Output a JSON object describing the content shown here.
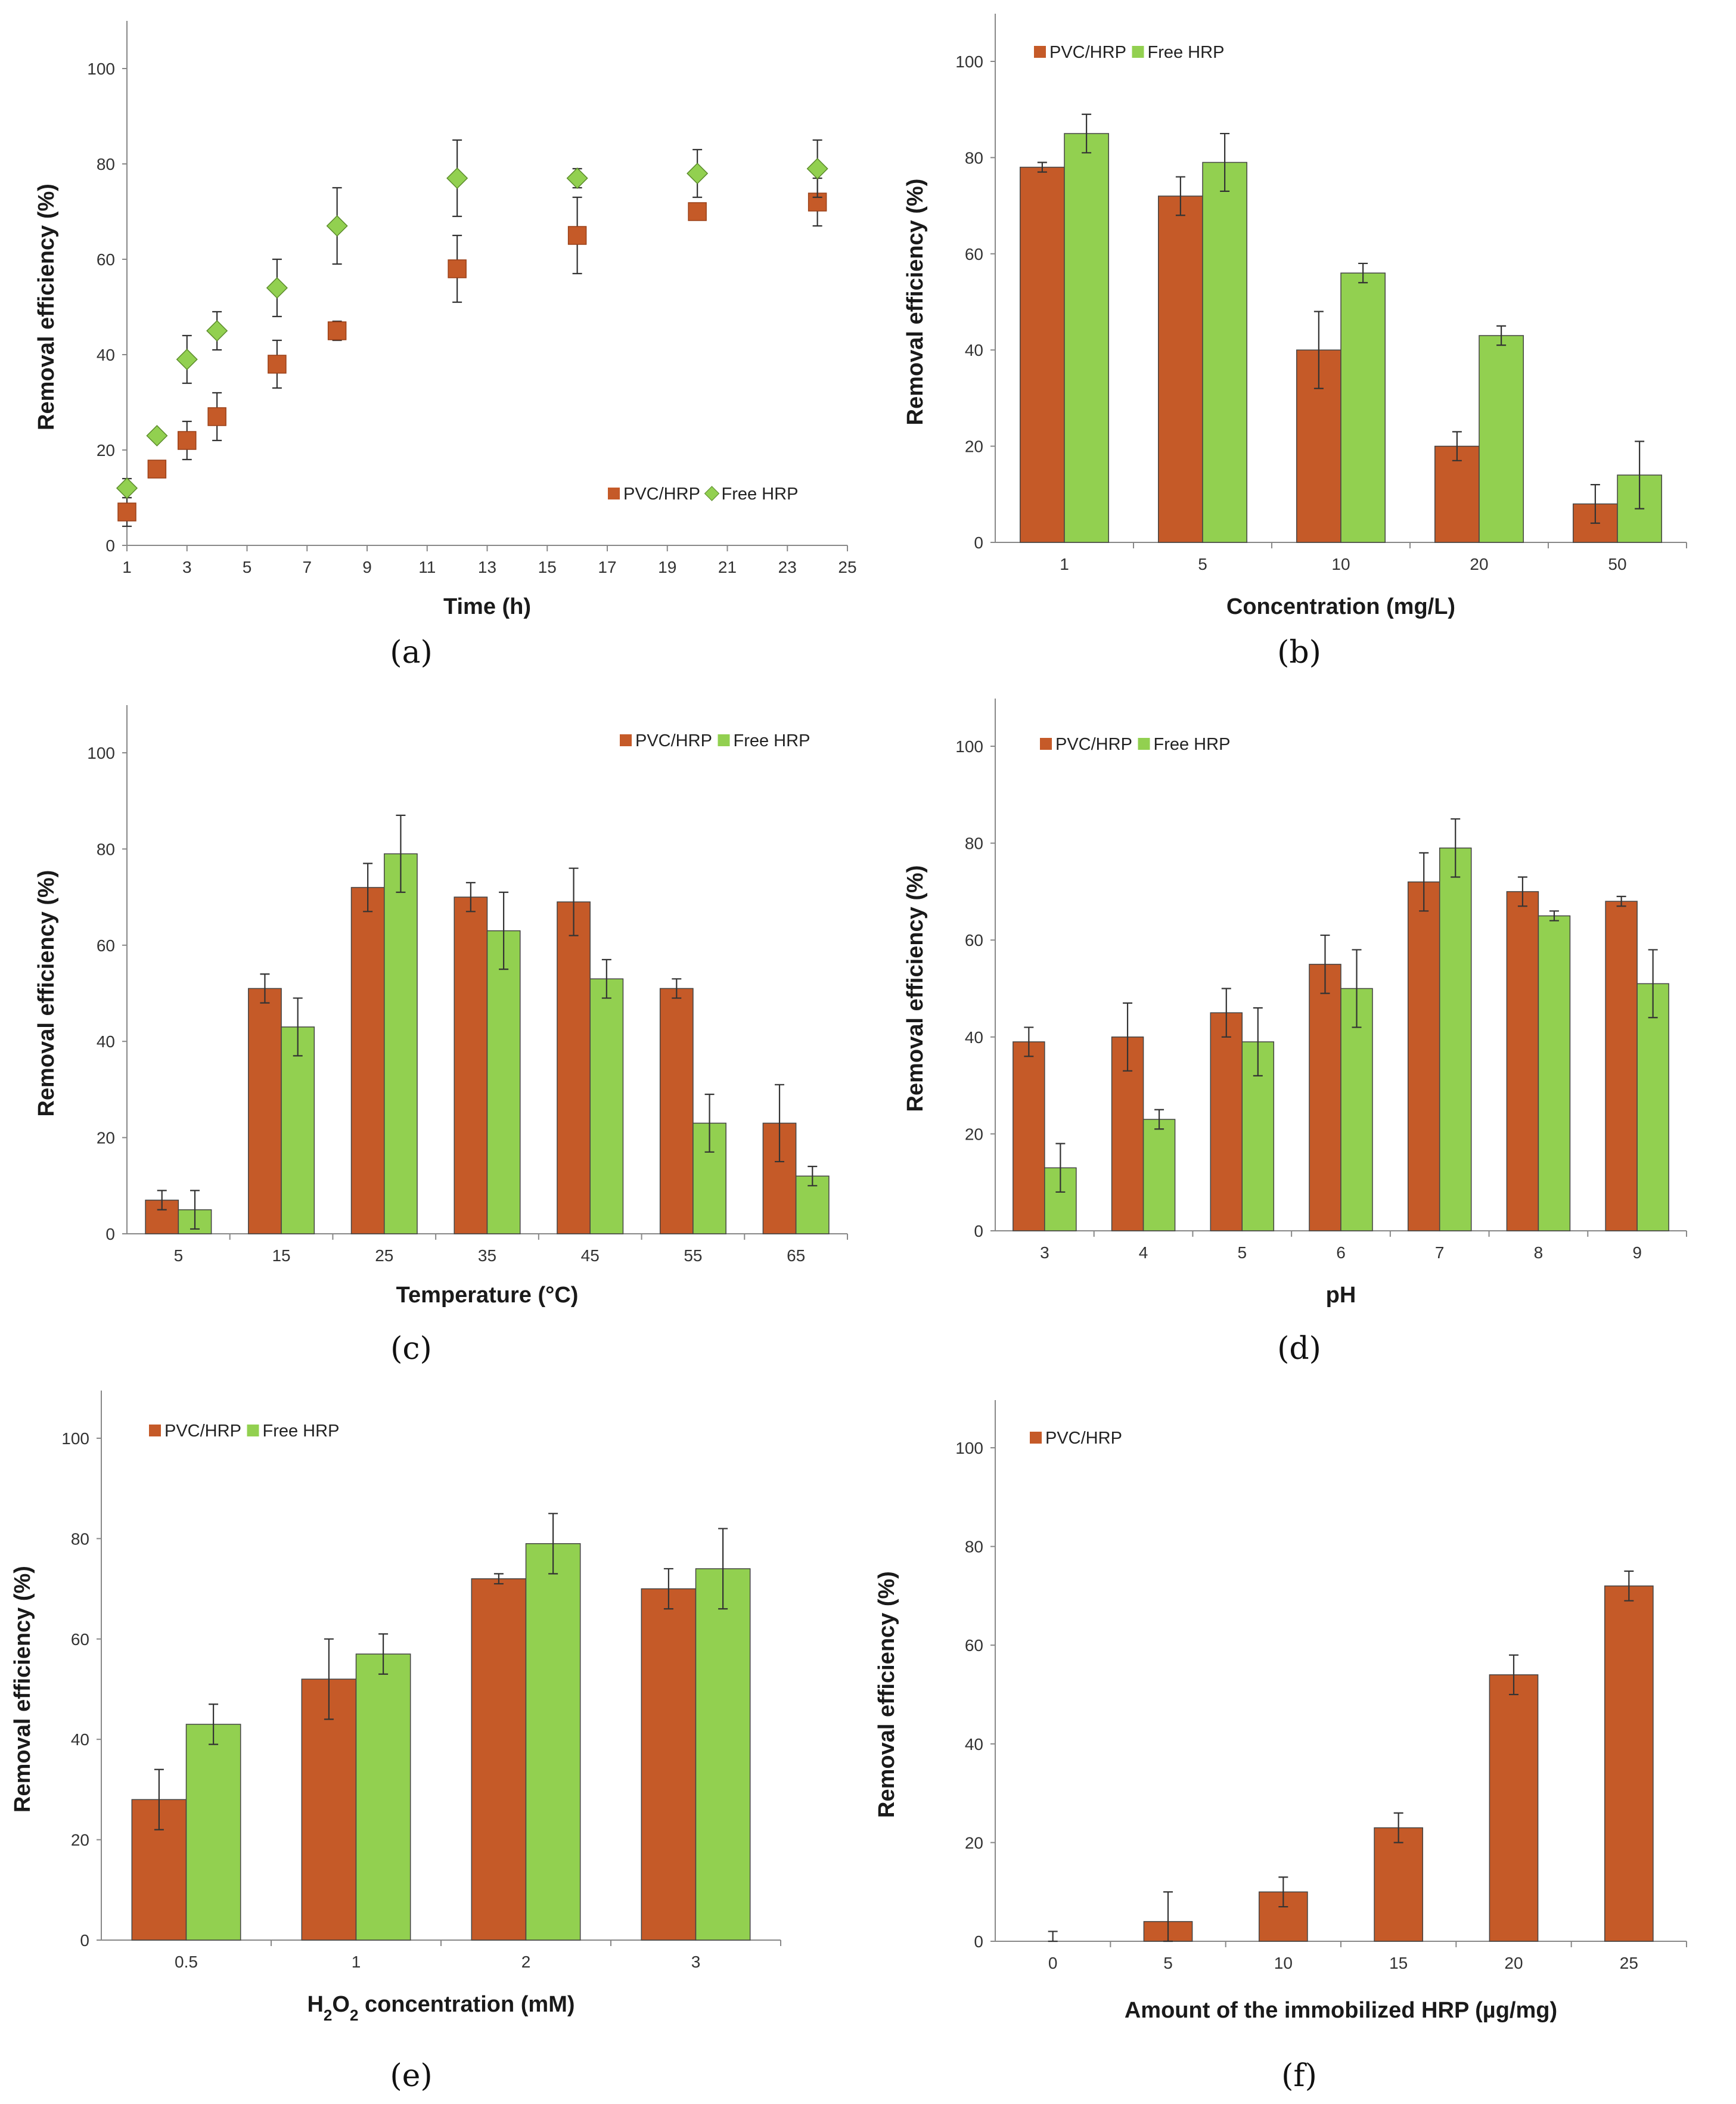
{
  "colors": {
    "pvc": "#C55A28",
    "free": "#92D050",
    "axis": "#888888",
    "errorbar": "#333333"
  },
  "chart_data": [
    {
      "panel": "(a)",
      "type": "scatter",
      "xlabel": "Time (h)",
      "ylabel": "Removal efficiency (%)",
      "xlim": [
        1,
        25
      ],
      "xticks": [
        "1",
        "3",
        "5",
        "7",
        "9",
        "11",
        "13",
        "15",
        "17",
        "19",
        "21",
        "23",
        "25"
      ],
      "ylim": [
        0,
        100
      ],
      "yticks": [
        "0",
        "20",
        "40",
        "60",
        "80",
        "100"
      ],
      "legend": "bottom-right",
      "series": [
        {
          "name": "PVC/HRP",
          "marker": "square",
          "x": [
            1,
            2,
            3,
            4,
            6,
            8,
            12,
            16,
            20,
            24
          ],
          "values": [
            7,
            16,
            22,
            27,
            38,
            45,
            58,
            65,
            70,
            72
          ],
          "errors": [
            3,
            1,
            4,
            5,
            5,
            2,
            7,
            8,
            1,
            5
          ]
        },
        {
          "name": "Free HRP",
          "marker": "diamond",
          "x": [
            1,
            2,
            3,
            4,
            6,
            8,
            12,
            16,
            20,
            24
          ],
          "values": [
            12,
            23,
            39,
            45,
            54,
            67,
            77,
            77,
            78,
            79
          ],
          "errors": [
            2,
            1,
            5,
            4,
            6,
            8,
            8,
            2,
            5,
            6
          ]
        }
      ]
    },
    {
      "panel": "(b)",
      "type": "bar",
      "xlabel": "Concentration (mg/L)",
      "ylabel": "Removal efficiency (%)",
      "categories": [
        "1",
        "5",
        "10",
        "20",
        "50"
      ],
      "ylim": [
        0,
        100
      ],
      "yticks": [
        "0",
        "20",
        "40",
        "60",
        "80",
        "100"
      ],
      "legend": "top-left",
      "series": [
        {
          "name": "PVC/HRP",
          "values": [
            78,
            72,
            40,
            20,
            8
          ],
          "errors": [
            1,
            4,
            8,
            3,
            4
          ]
        },
        {
          "name": "Free HRP",
          "values": [
            85,
            79,
            56,
            43,
            14
          ],
          "errors": [
            4,
            6,
            2,
            2,
            7
          ]
        }
      ]
    },
    {
      "panel": "(c)",
      "type": "bar",
      "xlabel": "Temperature (°C)",
      "ylabel": "Removal efficiency (%)",
      "categories": [
        "5",
        "15",
        "25",
        "35",
        "45",
        "55",
        "65"
      ],
      "ylim": [
        0,
        100
      ],
      "yticks": [
        "0",
        "20",
        "40",
        "60",
        "80",
        "100"
      ],
      "legend": "top-right",
      "series": [
        {
          "name": "PVC/HRP",
          "values": [
            7,
            51,
            72,
            70,
            69,
            51,
            23
          ],
          "errors": [
            2,
            3,
            5,
            3,
            7,
            2,
            8
          ]
        },
        {
          "name": "Free HRP",
          "values": [
            5,
            43,
            79,
            63,
            53,
            23,
            12
          ],
          "errors": [
            4,
            6,
            8,
            8,
            4,
            6,
            2
          ]
        }
      ]
    },
    {
      "panel": "(d)",
      "type": "bar",
      "xlabel": "pH",
      "ylabel": "Removal efficiency (%)",
      "categories": [
        "3",
        "4",
        "5",
        "6",
        "7",
        "8",
        "9"
      ],
      "ylim": [
        0,
        100
      ],
      "yticks": [
        "0",
        "20",
        "40",
        "60",
        "80",
        "100"
      ],
      "legend": "top-left",
      "series": [
        {
          "name": "PVC/HRP",
          "values": [
            39,
            40,
            45,
            55,
            72,
            70,
            68
          ],
          "errors": [
            3,
            7,
            5,
            6,
            6,
            3,
            1
          ]
        },
        {
          "name": "Free HRP",
          "values": [
            13,
            23,
            39,
            50,
            79,
            65,
            51
          ],
          "errors": [
            5,
            2,
            7,
            8,
            6,
            1,
            7
          ]
        }
      ]
    },
    {
      "panel": "(e)",
      "type": "bar",
      "xlabel": "H2O2 concentration (mM)",
      "ylabel": "Removal efficiency (%)",
      "categories": [
        "0.5",
        "1",
        "2",
        "3"
      ],
      "ylim": [
        0,
        100
      ],
      "yticks": [
        "0",
        "20",
        "40",
        "60",
        "80",
        "100"
      ],
      "legend": "top-left",
      "series": [
        {
          "name": "PVC/HRP",
          "values": [
            28,
            52,
            72,
            70
          ],
          "errors": [
            6,
            8,
            1,
            4
          ]
        },
        {
          "name": "Free HRP",
          "values": [
            43,
            57,
            79,
            74
          ],
          "errors": [
            4,
            4,
            6,
            8
          ]
        }
      ]
    },
    {
      "panel": "(f)",
      "type": "bar",
      "xlabel": "Amount of the immobilized HRP (µg/mg)",
      "ylabel": "Removal efficiency (%)",
      "categories": [
        "0",
        "5",
        "10",
        "15",
        "20",
        "25"
      ],
      "ylim": [
        0,
        100
      ],
      "yticks": [
        "0",
        "20",
        "40",
        "60",
        "80",
        "100"
      ],
      "legend": "top-left",
      "series": [
        {
          "name": "PVC/HRP",
          "values": [
            0,
            4,
            10,
            23,
            54,
            72
          ],
          "errors": [
            2,
            6,
            3,
            3,
            4,
            3
          ]
        }
      ]
    }
  ]
}
